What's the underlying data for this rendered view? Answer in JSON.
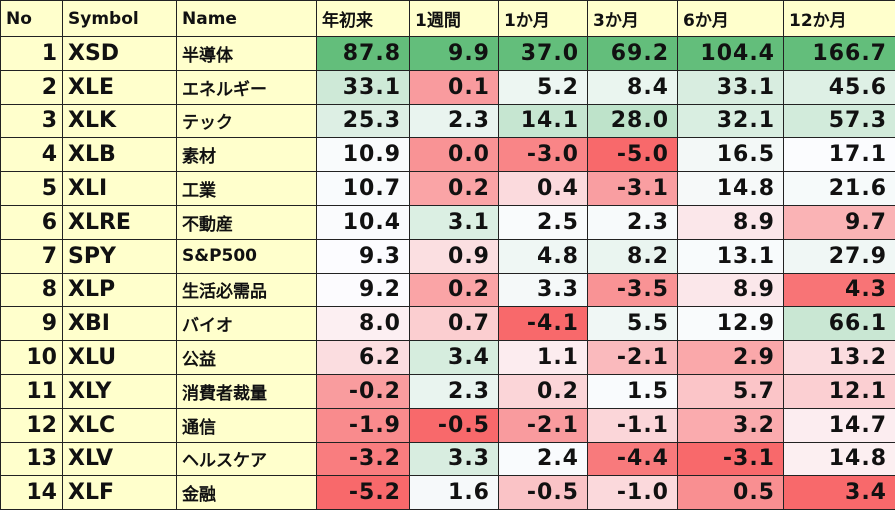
{
  "table": {
    "header": [
      "No",
      "Symbol",
      "Name",
      "年初来",
      "1週間",
      "1か月",
      "3か月",
      "6か月",
      "12か月"
    ],
    "rows": [
      [
        "1",
        "XSD",
        "半導体",
        "87.8",
        "9.9",
        "37.0",
        "69.2",
        "104.4",
        "166.7"
      ],
      [
        "2",
        "XLE",
        "エネルギー",
        "33.1",
        "0.1",
        "5.2",
        "8.4",
        "33.1",
        "45.6"
      ],
      [
        "3",
        "XLK",
        "テック",
        "25.3",
        "2.3",
        "14.1",
        "28.0",
        "32.1",
        "57.3"
      ],
      [
        "4",
        "XLB",
        "素材",
        "10.9",
        "0.0",
        "-3.0",
        "-5.0",
        "16.5",
        "17.1"
      ],
      [
        "5",
        "XLI",
        "工業",
        "10.7",
        "0.2",
        "0.4",
        "-3.1",
        "14.8",
        "21.6"
      ],
      [
        "6",
        "XLRE",
        "不動産",
        "10.4",
        "3.1",
        "2.5",
        "2.3",
        "8.9",
        "9.7"
      ],
      [
        "7",
        "SPY",
        "S&P500",
        "9.3",
        "0.9",
        "4.8",
        "8.2",
        "13.1",
        "27.9"
      ],
      [
        "8",
        "XLP",
        "生活必需品",
        "9.2",
        "0.2",
        "3.3",
        "-3.5",
        "8.9",
        "4.3"
      ],
      [
        "9",
        "XBI",
        "バイオ",
        "8.0",
        "0.7",
        "-4.1",
        "5.5",
        "12.9",
        "66.1"
      ],
      [
        "10",
        "XLU",
        "公益",
        "6.2",
        "3.4",
        "1.1",
        "-2.1",
        "2.9",
        "13.2"
      ],
      [
        "11",
        "XLY",
        "消費者裁量",
        "-0.2",
        "2.3",
        "0.2",
        "1.5",
        "5.7",
        "12.1"
      ],
      [
        "12",
        "XLC",
        "通信",
        "-1.9",
        "-0.5",
        "-2.1",
        "-1.1",
        "3.2",
        "14.7"
      ],
      [
        "13",
        "XLV",
        "ヘルスケア",
        "-3.2",
        "3.3",
        "2.4",
        "-4.4",
        "-3.1",
        "14.8"
      ],
      [
        "14",
        "XLF",
        "金融",
        "-5.2",
        "1.6",
        "-0.5",
        "-1.0",
        "0.5",
        "3.4"
      ]
    ]
  }
}
